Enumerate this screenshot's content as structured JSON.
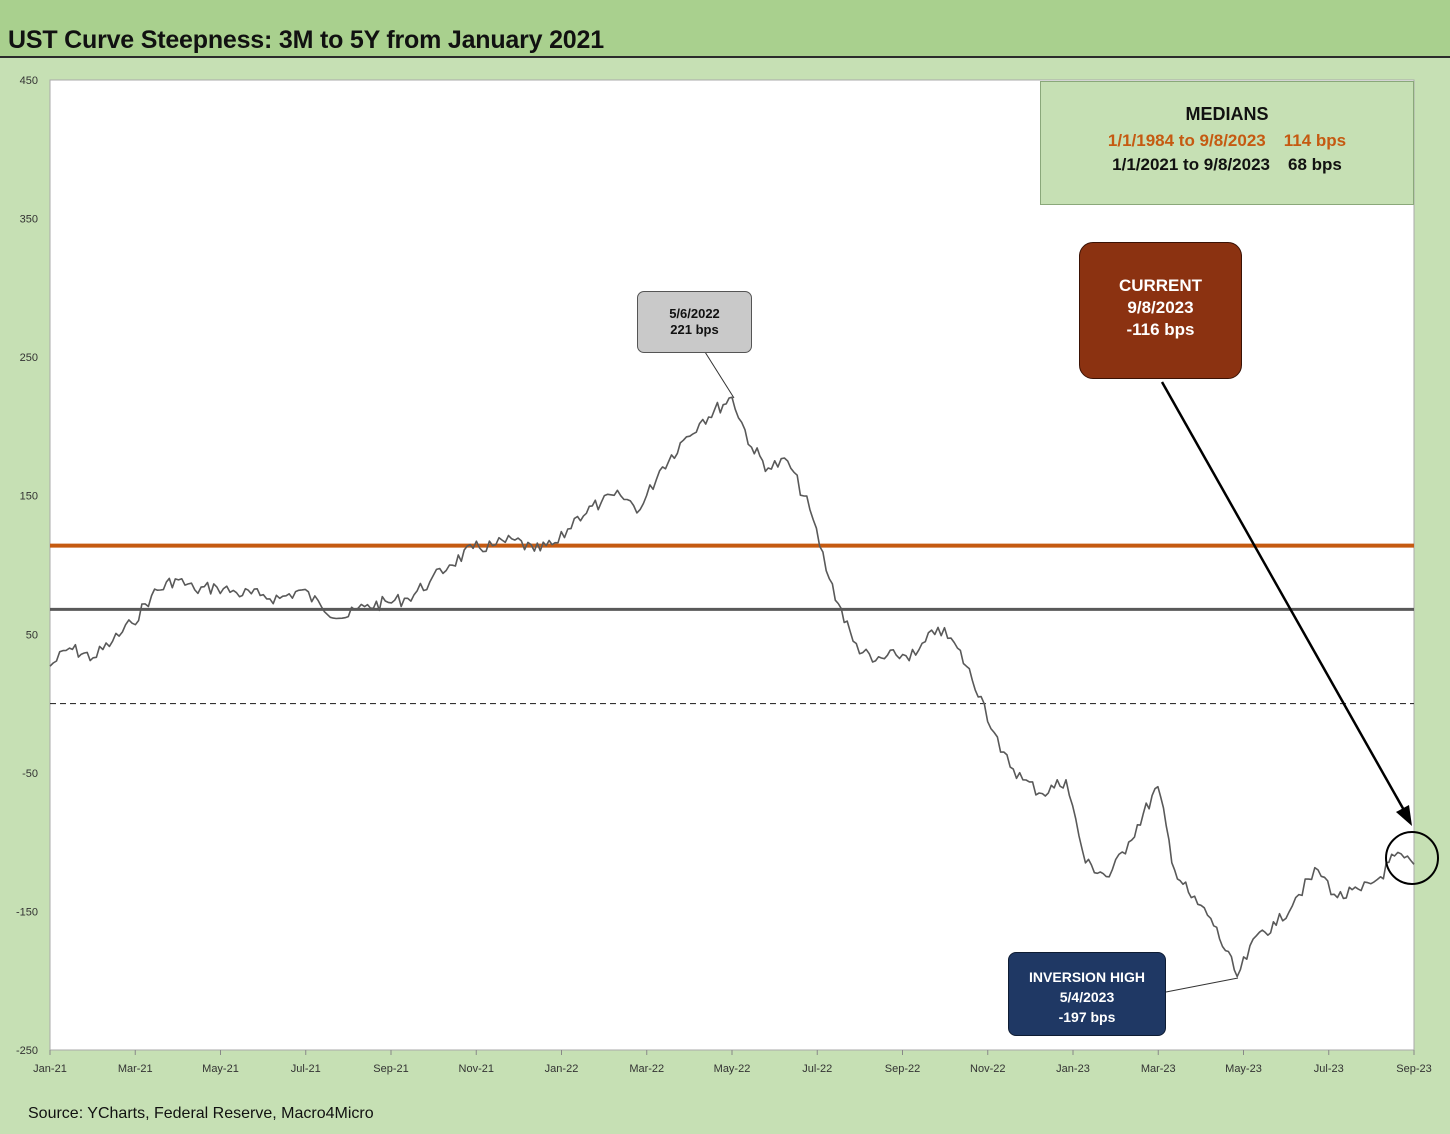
{
  "title": "UST Curve Steepness: 3M to 5Y from January 2021",
  "source": "Source: YCharts, Federal Reserve, Macro4Micro",
  "colors": {
    "background": "#c6e0b4",
    "title_bar": "#a9d08e",
    "series_line": "#595959",
    "median_long_term": "#c55a11",
    "median_recent": "#595959",
    "current_box": "#8b3211",
    "peak_box": "#c9c9c9",
    "inversion_box": "#1f3864"
  },
  "medians_box": {
    "title": "MEDIANS",
    "long_term_label": "1/1/1984 to 9/8/2023",
    "long_term_value": "114 bps",
    "recent_label": "1/1/2021 to 9/8/2023",
    "recent_value": "68 bps"
  },
  "current_box": {
    "line1": "CURRENT",
    "line2": "9/8/2023",
    "line3": "-116 bps"
  },
  "peak_callout": {
    "line1": "5/6/2022",
    "line2": "221 bps"
  },
  "inversion_callout": {
    "line1": "INVERSION HIGH",
    "line2": "5/4/2023",
    "line3": "-197 bps"
  },
  "chart_data": {
    "type": "line",
    "title": "UST Curve Steepness: 3M to 5Y from January 2021",
    "xlabel": "",
    "ylabel": "",
    "x_range": [
      "2021-01-01",
      "2023-09-08"
    ],
    "ylim": [
      -250,
      450
    ],
    "y_ticks": [
      450,
      350,
      250,
      150,
      50,
      -50,
      -150,
      -250
    ],
    "x_ticks": [
      "Jan-21",
      "Mar-21",
      "May-21",
      "Jul-21",
      "Sep-21",
      "Nov-21",
      "Jan-22",
      "Mar-22",
      "May-22",
      "Jul-22",
      "Sep-22",
      "Nov-22",
      "Jan-23",
      "Mar-23",
      "May-23",
      "Jul-23",
      "Sep-23"
    ],
    "grid": false,
    "reference_lines": [
      {
        "value": 114,
        "style": "solid",
        "color": "#c55a11"
      },
      {
        "value": 68,
        "style": "solid",
        "color": "#595959"
      },
      {
        "value": 0,
        "style": "dashed",
        "color": "#333333"
      }
    ],
    "series": [
      {
        "values": [
          {
            "x": "2021-01-01",
            "y": 27
          },
          {
            "x": "2021-01-15",
            "y": 40
          },
          {
            "x": "2021-02-01",
            "y": 33
          },
          {
            "x": "2021-02-15",
            "y": 45
          },
          {
            "x": "2021-03-01",
            "y": 58
          },
          {
            "x": "2021-03-15",
            "y": 78
          },
          {
            "x": "2021-04-01",
            "y": 90
          },
          {
            "x": "2021-04-15",
            "y": 82
          },
          {
            "x": "2021-05-01",
            "y": 84
          },
          {
            "x": "2021-05-15",
            "y": 80
          },
          {
            "x": "2021-06-01",
            "y": 78
          },
          {
            "x": "2021-06-15",
            "y": 76
          },
          {
            "x": "2021-07-01",
            "y": 82
          },
          {
            "x": "2021-07-15",
            "y": 70
          },
          {
            "x": "2021-08-01",
            "y": 62
          },
          {
            "x": "2021-08-15",
            "y": 70
          },
          {
            "x": "2021-09-01",
            "y": 73
          },
          {
            "x": "2021-09-15",
            "y": 76
          },
          {
            "x": "2021-10-01",
            "y": 88
          },
          {
            "x": "2021-10-15",
            "y": 100
          },
          {
            "x": "2021-11-01",
            "y": 112
          },
          {
            "x": "2021-11-15",
            "y": 114
          },
          {
            "x": "2021-12-01",
            "y": 118
          },
          {
            "x": "2021-12-15",
            "y": 110
          },
          {
            "x": "2022-01-01",
            "y": 116
          },
          {
            "x": "2022-01-15",
            "y": 135
          },
          {
            "x": "2022-02-01",
            "y": 145
          },
          {
            "x": "2022-02-15",
            "y": 150
          },
          {
            "x": "2022-03-01",
            "y": 140
          },
          {
            "x": "2022-03-15",
            "y": 168
          },
          {
            "x": "2022-04-01",
            "y": 190
          },
          {
            "x": "2022-04-15",
            "y": 205
          },
          {
            "x": "2022-05-06",
            "y": 221
          },
          {
            "x": "2022-05-20",
            "y": 185
          },
          {
            "x": "2022-06-01",
            "y": 170
          },
          {
            "x": "2022-06-15",
            "y": 175
          },
          {
            "x": "2022-07-01",
            "y": 140
          },
          {
            "x": "2022-07-15",
            "y": 90
          },
          {
            "x": "2022-08-01",
            "y": 45
          },
          {
            "x": "2022-08-15",
            "y": 30
          },
          {
            "x": "2022-09-01",
            "y": 35
          },
          {
            "x": "2022-09-15",
            "y": 35
          },
          {
            "x": "2022-10-01",
            "y": 55
          },
          {
            "x": "2022-10-15",
            "y": 40
          },
          {
            "x": "2022-11-01",
            "y": 5
          },
          {
            "x": "2022-11-15",
            "y": -35
          },
          {
            "x": "2022-12-01",
            "y": -55
          },
          {
            "x": "2022-12-15",
            "y": -65
          },
          {
            "x": "2023-01-01",
            "y": -55
          },
          {
            "x": "2023-01-15",
            "y": -115
          },
          {
            "x": "2023-02-01",
            "y": -125
          },
          {
            "x": "2023-02-15",
            "y": -100
          },
          {
            "x": "2023-03-08",
            "y": -60
          },
          {
            "x": "2023-03-20",
            "y": -120
          },
          {
            "x": "2023-04-01",
            "y": -140
          },
          {
            "x": "2023-04-15",
            "y": -155
          },
          {
            "x": "2023-05-04",
            "y": -197
          },
          {
            "x": "2023-05-20",
            "y": -165
          },
          {
            "x": "2023-06-01",
            "y": -160
          },
          {
            "x": "2023-06-15",
            "y": -140
          },
          {
            "x": "2023-07-01",
            "y": -120
          },
          {
            "x": "2023-07-15",
            "y": -140
          },
          {
            "x": "2023-08-01",
            "y": -135
          },
          {
            "x": "2023-08-15",
            "y": -125
          },
          {
            "x": "2023-08-25",
            "y": -110
          },
          {
            "x": "2023-09-08",
            "y": -116
          }
        ]
      }
    ]
  }
}
